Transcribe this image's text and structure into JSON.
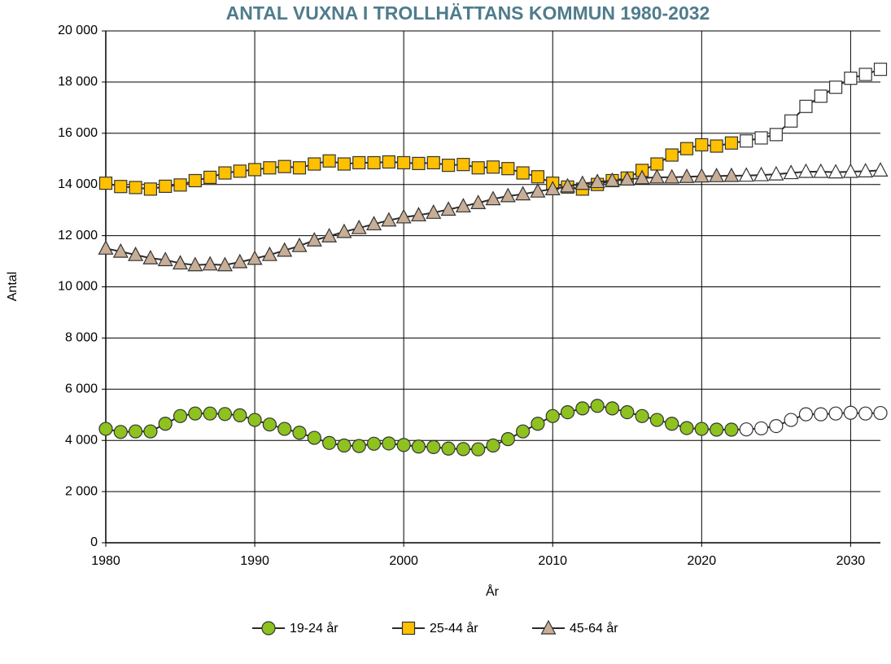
{
  "chart_data": {
    "type": "line",
    "title": "ANTAL VUXNA I TROLLHÄTTANS KOMMUN 1980-2032",
    "x_label": "År",
    "y_label": "Antal",
    "x": [
      1980,
      1981,
      1982,
      1983,
      1984,
      1985,
      1986,
      1987,
      1988,
      1989,
      1990,
      1991,
      1992,
      1993,
      1994,
      1995,
      1996,
      1997,
      1998,
      1999,
      2000,
      2001,
      2002,
      2003,
      2004,
      2005,
      2006,
      2007,
      2008,
      2009,
      2010,
      2011,
      2012,
      2013,
      2014,
      2015,
      2016,
      2017,
      2018,
      2019,
      2020,
      2021,
      2022,
      2023,
      2024,
      2025,
      2026,
      2027,
      2028,
      2029,
      2030,
      2031,
      2032
    ],
    "forecast_start": 2023,
    "forecast_color": "#ffffff",
    "line_color": "#2b2b2b",
    "series": [
      {
        "name": "19-24 år",
        "color": "#8dc21f",
        "marker": "circle",
        "values": [
          4450,
          4330,
          4350,
          4350,
          4650,
          4950,
          5050,
          5050,
          5030,
          4980,
          4800,
          4620,
          4450,
          4300,
          4100,
          3900,
          3800,
          3780,
          3870,
          3880,
          3820,
          3760,
          3740,
          3680,
          3660,
          3650,
          3800,
          4050,
          4350,
          4650,
          4950,
          5100,
          5250,
          5350,
          5250,
          5100,
          4950,
          4800,
          4650,
          4480,
          4450,
          4420,
          4420,
          4430,
          4470,
          4560,
          4800,
          5020,
          5020,
          5050,
          5080,
          5050,
          5070
        ]
      },
      {
        "name": "25-44 år",
        "color": "#ffc000",
        "marker": "square",
        "values": [
          14050,
          13920,
          13880,
          13820,
          13930,
          13980,
          14150,
          14280,
          14450,
          14520,
          14580,
          14650,
          14700,
          14650,
          14800,
          14920,
          14800,
          14850,
          14850,
          14880,
          14850,
          14820,
          14850,
          14750,
          14780,
          14650,
          14680,
          14620,
          14450,
          14300,
          14050,
          13900,
          13820,
          14000,
          14150,
          14250,
          14550,
          14800,
          15150,
          15400,
          15550,
          15500,
          15620,
          15700,
          15820,
          15950,
          16480,
          17050,
          17450,
          17800,
          18150,
          18300,
          18500
        ]
      },
      {
        "name": "45-64 år",
        "color": "#c8ae96",
        "marker": "triangle",
        "values": [
          11500,
          11380,
          11250,
          11120,
          11050,
          10920,
          10850,
          10880,
          10850,
          10970,
          11100,
          11250,
          11420,
          11600,
          11820,
          11980,
          12150,
          12300,
          12450,
          12600,
          12720,
          12800,
          12900,
          13020,
          13150,
          13280,
          13430,
          13550,
          13620,
          13730,
          13820,
          13930,
          14030,
          14100,
          14150,
          14200,
          14250,
          14280,
          14280,
          14300,
          14320,
          14330,
          14340,
          14350,
          14370,
          14400,
          14450,
          14500,
          14500,
          14480,
          14500,
          14520,
          14550
        ]
      }
    ],
    "xlim": [
      1980,
      2032
    ],
    "ylim": [
      0,
      20000
    ],
    "xticks": [
      1980,
      1990,
      2000,
      2010,
      2020,
      2030
    ],
    "yticks": [
      0,
      {
        "value": 2000,
        "label": "2 000"
      },
      {
        "value": 4000,
        "label": "4 000"
      },
      {
        "value": 6000,
        "label": "6 000"
      },
      {
        "value": 8000,
        "label": "8 000"
      },
      {
        "value": 10000,
        "label": "10 000"
      },
      {
        "value": 12000,
        "label": "12 000"
      },
      {
        "value": 14000,
        "label": "14 000"
      },
      {
        "value": 16000,
        "label": "16 000"
      },
      {
        "value": 18000,
        "label": "18 000"
      },
      {
        "value": 20000,
        "label": "20 000"
      }
    ],
    "grid": true,
    "legend": "bottom"
  }
}
